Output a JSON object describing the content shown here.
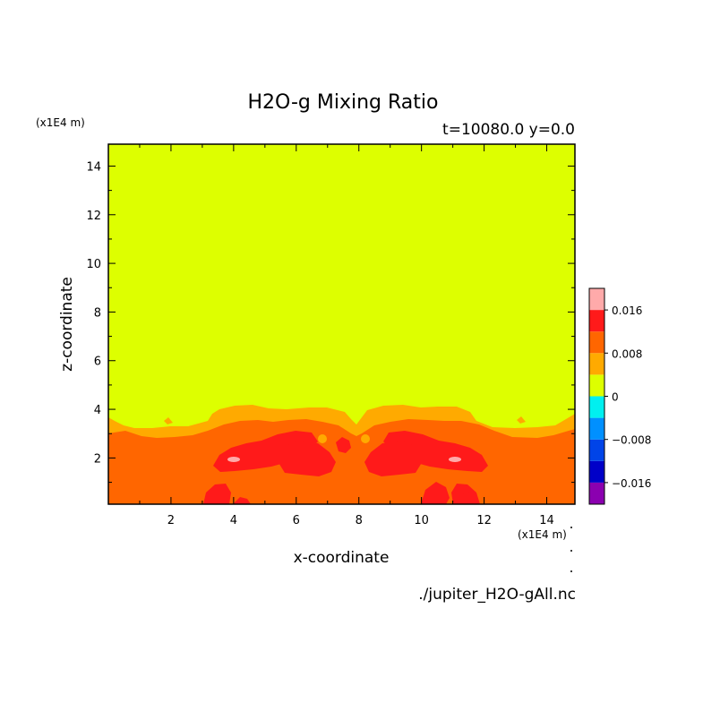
{
  "chart_data": {
    "type": "heatmap",
    "title": "H2O-g Mixing Ratio",
    "info": "t=10080.0 y=0.0",
    "xlabel": "x-coordinate",
    "ylabel": "z-coordinate",
    "x_unit": "(x1E4 m)",
    "y_unit": "(x1E4 m)",
    "xlim": [
      0,
      14.9
    ],
    "ylim": [
      0.1,
      14.9
    ],
    "x_ticks": [
      2,
      4,
      6,
      8,
      10,
      12,
      14
    ],
    "y_ticks": [
      2,
      4,
      6,
      8,
      10,
      12,
      14
    ],
    "colorbar": {
      "levels": [
        -0.02,
        -0.016,
        -0.012,
        -0.008,
        -0.004,
        0,
        0.004,
        0.008,
        0.012,
        0.016,
        0.02
      ],
      "colors": [
        "#8B00B0",
        "#0000C8",
        "#0044E8",
        "#0090FF",
        "#00F0F0",
        "#DDFF00",
        "#FFAA00",
        "#FF6600",
        "#FF1A1A",
        "#FFAAAA"
      ],
      "tick_values": [
        0.016,
        0.008,
        0,
        -0.008,
        -0.016
      ],
      "tick_labels": [
        "0.016",
        "0.008",
        "0",
        "−0.008",
        "−0.016"
      ]
    },
    "regions": [
      {
        "level": "0 to 0.004",
        "color": "#DDFF00",
        "description": "upper domain above z≈3.5"
      },
      {
        "level": "0.004 to 0.008",
        "color": "#FFAA00",
        "description": "boundary layer z≈3–4"
      },
      {
        "level": "0.008 to 0.012",
        "color": "#FF6600",
        "description": "lower layer below z≈3"
      },
      {
        "level": "0.012 to 0.016",
        "color": "#FF1A1A",
        "description": "patches near z≈1–2.5"
      },
      {
        "level": "0.016 to 0.02",
        "color": "#FFAAAA",
        "description": "small spots near x≈4 and x≈11, z≈1.9"
      }
    ]
  },
  "footer": {
    "filename": "./jupiter_H2O-gAll.nc"
  }
}
